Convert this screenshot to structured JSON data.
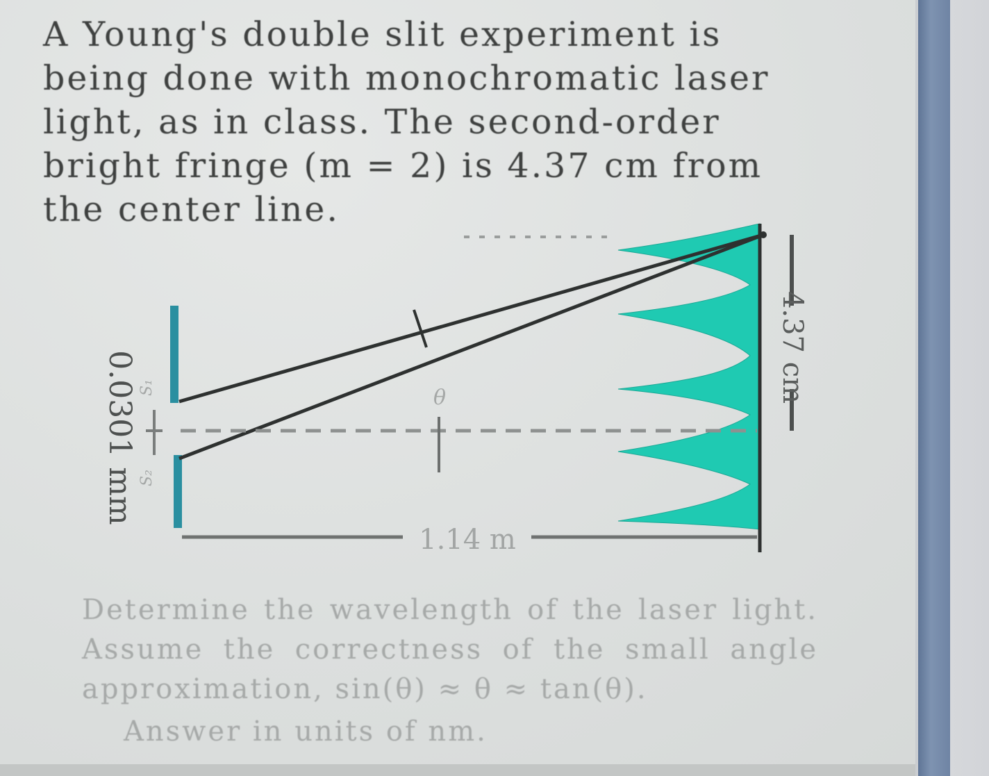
{
  "problem": {
    "text": "A Young's double slit experiment is being done with monochromatic laser light, as in class. The second-order bright fringe (m = 2) is 4.37 cm from the center line."
  },
  "diagram": {
    "slit_separation": "0.0301 mm",
    "screen_distance": "1.14 m",
    "fringe_distance": "4.37 cm",
    "angle_label": "θ",
    "slit_labels": [
      "S₁",
      "S₂"
    ],
    "fringe_color": "#1fcab2",
    "barrier_color": "#2a8fa0"
  },
  "question": {
    "text": "Determine the wavelength of the laser light. Assume the correctness of the small angle approximation, sin(θ) ≈ θ ≈ tan(θ).",
    "answer_prompt": "Answer in units of nm."
  }
}
